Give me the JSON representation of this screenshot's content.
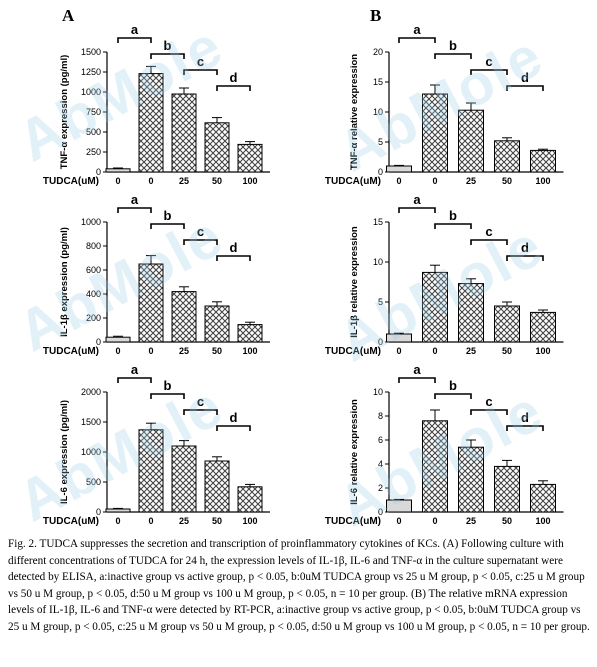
{
  "figure": {
    "panel_labels": [
      "A",
      "B"
    ],
    "watermark": "AbMole",
    "caption": "Fig. 2. TUDCA suppresses the secretion and transcription of proinflammatory cytokines of KCs. (A) Following culture with different concentrations of TUDCA for 24 h, the expression levels of IL-1β, IL-6 and TNF-α in the culture supernatant were detected by ELISA, a:inactive group vs active group, p < 0.05, b:0uM TUDCA group vs 25 u M group, p < 0.05, c:25 u M group vs 50 u M group, p < 0.05, d:50 u M group vs 100 u M group, p < 0.05, n = 10 per group. (B) The relative mRNA expression levels of IL-1β, IL-6 and TNF-α were detected by RT-PCR, a:inactive group vs active group, p < 0.05, b:0uM TUDCA group vs 25 u M group, p < 0.05, c:25 u M group vs 50 u M group, p < 0.05, d:50 u M group vs 100 u M group, p < 0.05, n = 10 per group."
  },
  "colors": {
    "control_bar": "#d9d9d9",
    "hatched_bar": "#555555",
    "axis": "#000000"
  },
  "chart_data": [
    {
      "id": "tnf-elisa",
      "type": "bar",
      "panel": "A",
      "categories": [
        "0",
        "0",
        "25",
        "50",
        "100"
      ],
      "x_prefix": "TUDCA(uM)",
      "ylabel": "TNF-α expression (pg/ml)",
      "ylim": [
        0,
        1500
      ],
      "yticks": [
        0,
        250,
        500,
        750,
        1000,
        1250,
        1500
      ],
      "values": [
        40,
        1230,
        975,
        615,
        345
      ],
      "errors": [
        10,
        90,
        75,
        65,
        35
      ],
      "sig_labels": [
        "a",
        "b",
        "c",
        "d"
      ],
      "fill": [
        "solid",
        "hatch",
        "hatch",
        "hatch",
        "hatch"
      ]
    },
    {
      "id": "tnf-pcr",
      "type": "bar",
      "panel": "B",
      "categories": [
        "0",
        "0",
        "25",
        "50",
        "100"
      ],
      "x_prefix": "TUDCA(uM)",
      "ylabel": "TNF-α relative expression",
      "ylim": [
        0,
        20
      ],
      "yticks": [
        0,
        5,
        10,
        15,
        20
      ],
      "values": [
        1,
        13,
        10.3,
        5.2,
        3.6
      ],
      "errors": [
        0.1,
        1.5,
        1.2,
        0.5,
        0.2
      ],
      "sig_labels": [
        "a",
        "b",
        "c",
        "d"
      ],
      "fill": [
        "solid",
        "hatch",
        "hatch",
        "hatch",
        "hatch"
      ]
    },
    {
      "id": "il1b-elisa",
      "type": "bar",
      "panel": "A",
      "categories": [
        "0",
        "0",
        "25",
        "50",
        "100"
      ],
      "x_prefix": "TUDCA(uM)",
      "ylabel": "IL-1β expression (pg/ml)",
      "ylim": [
        0,
        1000
      ],
      "yticks": [
        0,
        200,
        400,
        600,
        800,
        1000
      ],
      "values": [
        40,
        650,
        420,
        300,
        145
      ],
      "errors": [
        8,
        70,
        40,
        35,
        20
      ],
      "sig_labels": [
        "a",
        "b",
        "c",
        "d"
      ],
      "fill": [
        "solid",
        "hatch",
        "hatch",
        "hatch",
        "hatch"
      ]
    },
    {
      "id": "il1b-pcr",
      "type": "bar",
      "panel": "B",
      "categories": [
        "0",
        "0",
        "25",
        "50",
        "100"
      ],
      "x_prefix": "TUDCA(uM)",
      "ylabel": "IL-1β relative expression",
      "ylim": [
        0,
        15
      ],
      "yticks": [
        0,
        5,
        10,
        15
      ],
      "values": [
        1,
        8.7,
        7.3,
        4.5,
        3.7
      ],
      "errors": [
        0.1,
        0.9,
        0.6,
        0.5,
        0.3
      ],
      "sig_labels": [
        "a",
        "b",
        "c",
        "d"
      ],
      "fill": [
        "solid",
        "hatch",
        "hatch",
        "hatch",
        "hatch"
      ]
    },
    {
      "id": "il6-elisa",
      "type": "bar",
      "panel": "A",
      "categories": [
        "0",
        "0",
        "25",
        "50",
        "100"
      ],
      "x_prefix": "TUDCA(uM)",
      "ylabel": "IL-6 expression (pg/ml)",
      "ylim": [
        0,
        2000
      ],
      "yticks": [
        0,
        500,
        1000,
        1500,
        2000
      ],
      "values": [
        50,
        1370,
        1100,
        850,
        420
      ],
      "errors": [
        10,
        110,
        90,
        70,
        40
      ],
      "sig_labels": [
        "a",
        "b",
        "c",
        "d"
      ],
      "fill": [
        "solid",
        "hatch",
        "hatch",
        "hatch",
        "hatch"
      ]
    },
    {
      "id": "il6-pcr",
      "type": "bar",
      "panel": "B",
      "categories": [
        "0",
        "0",
        "25",
        "50",
        "100"
      ],
      "x_prefix": "TUDCA(uM)",
      "ylabel": "IL-6 relative expression",
      "ylim": [
        0,
        10
      ],
      "yticks": [
        0,
        2,
        4,
        6,
        8,
        10
      ],
      "values": [
        1,
        7.6,
        5.4,
        3.8,
        2.3
      ],
      "errors": [
        0.05,
        0.9,
        0.6,
        0.5,
        0.3
      ],
      "sig_labels": [
        "a",
        "b",
        "c",
        "d"
      ],
      "fill": [
        "solid",
        "hatch",
        "hatch",
        "hatch",
        "hatch"
      ]
    }
  ]
}
